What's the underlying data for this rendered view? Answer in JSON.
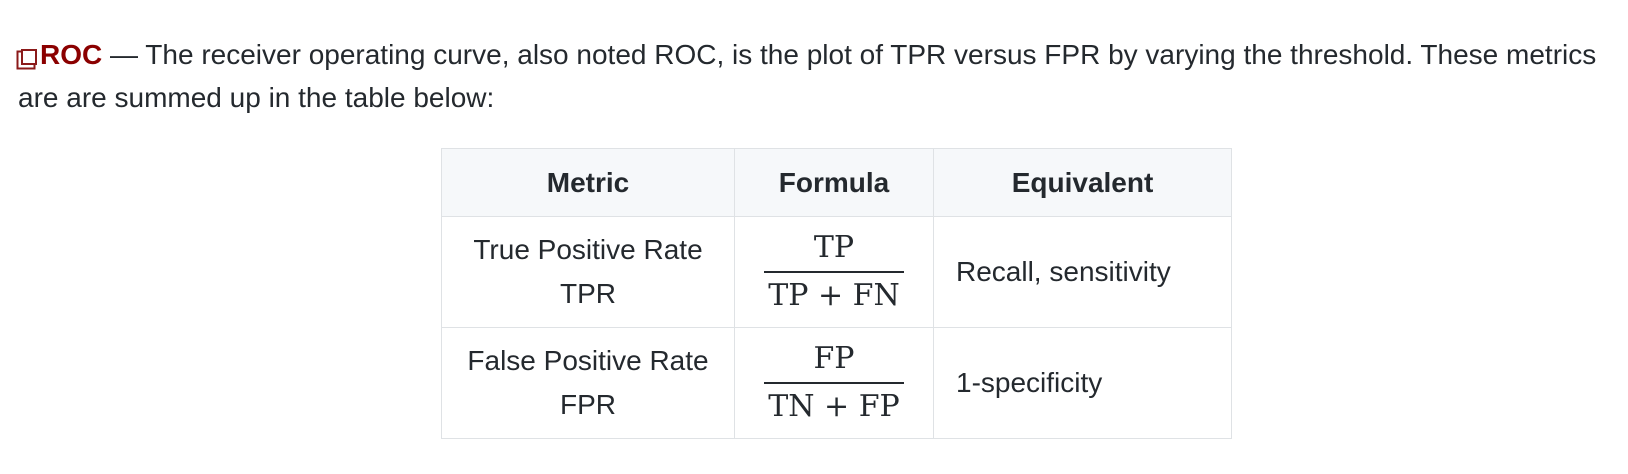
{
  "intro": {
    "term": "ROC",
    "dash": " — ",
    "text": "The receiver operating curve, also noted ROC, is the plot of TPR versus FPR by varying the threshold. These metrics are are summed up in the table below:"
  },
  "table": {
    "headers": [
      "Metric",
      "Formula",
      "Equivalent"
    ],
    "rows": [
      {
        "metric_name": "True Positive Rate",
        "metric_abbr": "TPR",
        "numerator": "TP",
        "denominator": "TP + FN",
        "equivalent": "Recall, sensitivity"
      },
      {
        "metric_name": "False Positive Rate",
        "metric_abbr": "FPR",
        "numerator": "FP",
        "denominator": "TN + FP",
        "equivalent": "1-specificity"
      }
    ]
  },
  "colors": {
    "term": "#8b0000",
    "header_bg": "#f6f8fa",
    "border": "#dfe2e5",
    "text": "#24292e"
  },
  "icons": {
    "term_marker": "square-icon"
  }
}
